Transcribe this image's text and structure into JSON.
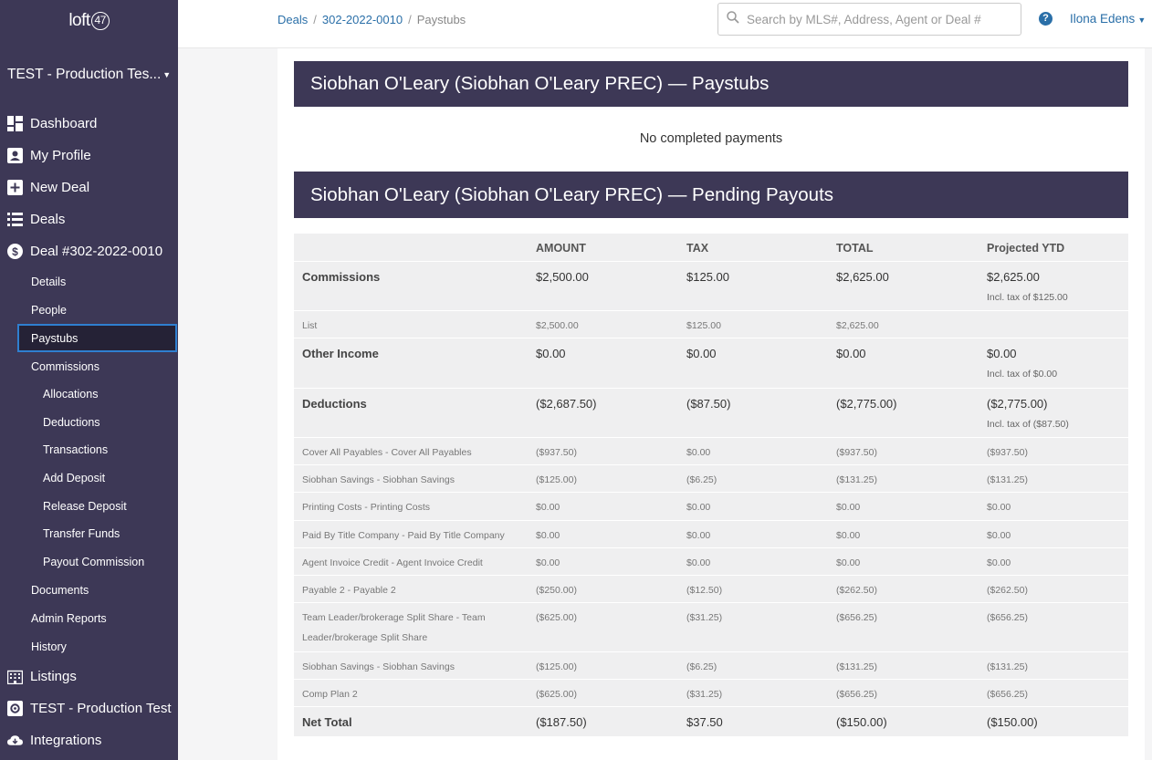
{
  "sidebar": {
    "logo_text": "loft",
    "logo_num": "47",
    "company": "TEST - Production Tes...",
    "items": [
      {
        "label": "Dashboard"
      },
      {
        "label": "My Profile"
      },
      {
        "label": "New Deal"
      },
      {
        "label": "Deals"
      },
      {
        "label": "Deal #302-2022-0010"
      }
    ],
    "deal_sub": [
      {
        "label": "Details"
      },
      {
        "label": "People"
      },
      {
        "label": "Paystubs"
      },
      {
        "label": "Commissions"
      }
    ],
    "commission_sub": [
      {
        "label": "Allocations"
      },
      {
        "label": "Deductions"
      },
      {
        "label": "Transactions"
      },
      {
        "label": "Add Deposit"
      },
      {
        "label": "Release Deposit"
      },
      {
        "label": "Transfer Funds"
      },
      {
        "label": "Payout Commission"
      }
    ],
    "deal_sub2": [
      {
        "label": "Documents"
      },
      {
        "label": "Admin Reports"
      },
      {
        "label": "History"
      }
    ],
    "bottom": [
      {
        "label": "Listings"
      },
      {
        "label": "TEST - Production Test"
      },
      {
        "label": "Integrations"
      }
    ]
  },
  "header": {
    "breadcrumb": [
      "Deals",
      "302-2022-0010",
      "Paystubs"
    ],
    "search_placeholder": "Search by MLS#, Address, Agent or Deal #",
    "help": "?",
    "user": "Ilona Edens"
  },
  "paystubs": {
    "title": "Siobhan O'Leary (Siobhan O'Leary PREC) — Paystubs",
    "empty": "No completed payments"
  },
  "pending": {
    "title": "Siobhan O'Leary (Siobhan O'Leary PREC) — Pending Payouts",
    "columns": [
      "",
      "AMOUNT",
      "TAX",
      "TOTAL",
      "Projected YTD"
    ],
    "commissions": {
      "label": "Commissions",
      "amount": "$2,500.00",
      "tax": "$125.00",
      "total": "$2,625.00",
      "ytd": "$2,625.00",
      "ytd_sub": "Incl. tax of $125.00"
    },
    "list": {
      "label": "List",
      "amount": "$2,500.00",
      "tax": "$125.00",
      "total": "$2,625.00",
      "ytd": ""
    },
    "other_income": {
      "label": "Other Income",
      "amount": "$0.00",
      "tax": "$0.00",
      "total": "$0.00",
      "ytd": "$0.00",
      "ytd_sub": "Incl. tax of $0.00"
    },
    "deductions": {
      "label": "Deductions",
      "amount": "($2,687.50)",
      "tax": "($87.50)",
      "total": "($2,775.00)",
      "ytd": "($2,775.00)",
      "ytd_sub": "Incl. tax of ($87.50)"
    },
    "deduction_rows": [
      {
        "label": "Cover All Payables - Cover All Payables",
        "amount": "($937.50)",
        "tax": "$0.00",
        "total": "($937.50)",
        "ytd": "($937.50)"
      },
      {
        "label": "Siobhan Savings - Siobhan Savings",
        "amount": "($125.00)",
        "tax": "($6.25)",
        "total": "($131.25)",
        "ytd": "($131.25)"
      },
      {
        "label": "Printing Costs - Printing Costs",
        "amount": "$0.00",
        "tax": "$0.00",
        "total": "$0.00",
        "ytd": "$0.00"
      },
      {
        "label": "Paid By Title Company - Paid By Title Company",
        "amount": "$0.00",
        "tax": "$0.00",
        "total": "$0.00",
        "ytd": "$0.00"
      },
      {
        "label": "Agent Invoice Credit - Agent Invoice Credit",
        "amount": "$0.00",
        "tax": "$0.00",
        "total": "$0.00",
        "ytd": "$0.00"
      },
      {
        "label": "Payable 2 - Payable 2",
        "amount": "($250.00)",
        "tax": "($12.50)",
        "total": "($262.50)",
        "ytd": "($262.50)"
      },
      {
        "label": "Team Leader/brokerage Split Share - Team Leader/brokerage Split Share",
        "amount": "($625.00)",
        "tax": "($31.25)",
        "total": "($656.25)",
        "ytd": "($656.25)"
      },
      {
        "label": "Siobhan Savings - Siobhan Savings",
        "amount": "($125.00)",
        "tax": "($6.25)",
        "total": "($131.25)",
        "ytd": "($131.25)"
      },
      {
        "label": "Comp Plan 2",
        "amount": "($625.00)",
        "tax": "($31.25)",
        "total": "($656.25)",
        "ytd": "($656.25)"
      }
    ],
    "net_total": {
      "label": "Net Total",
      "amount": "($187.50)",
      "tax": "$37.50",
      "total": "($150.00)",
      "ytd": "($150.00)"
    }
  }
}
